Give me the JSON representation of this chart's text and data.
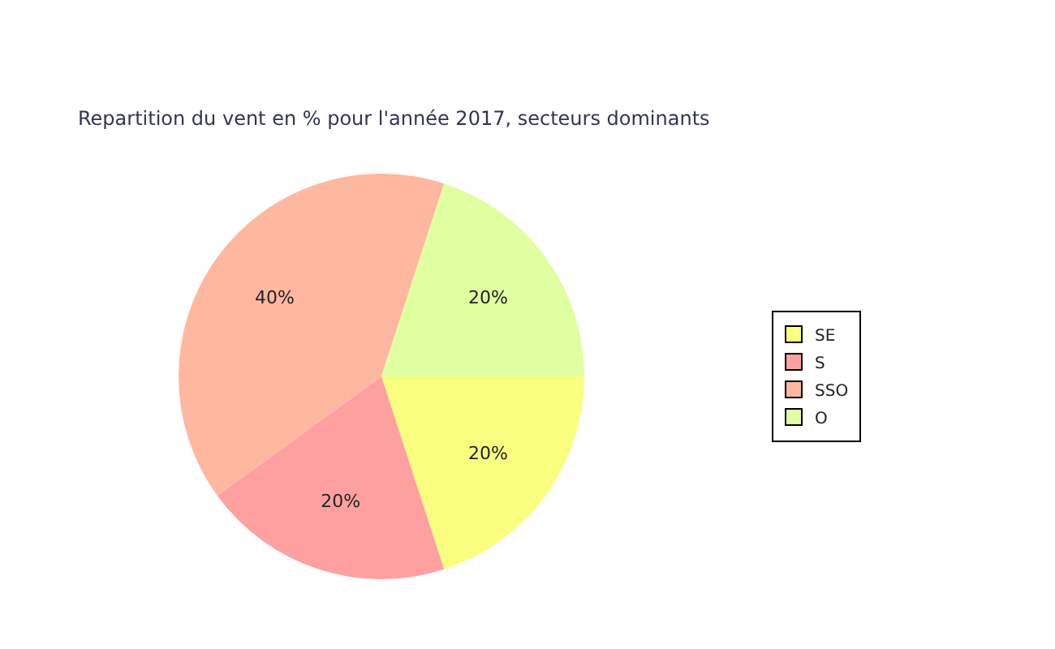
{
  "chart_data": {
    "type": "pie",
    "title": "Repartition du vent en % pour l'année 2017, secteurs dominants",
    "categories": [
      "SE",
      "S",
      "SSO",
      "O"
    ],
    "values": [
      20,
      20,
      40,
      20
    ],
    "value_labels": [
      "20%",
      "20%",
      "40%",
      "20%"
    ],
    "colors": [
      "#faff80",
      "#ffa0a0",
      "#ffb8a0",
      "#e0ffa0"
    ],
    "legend": "right"
  }
}
